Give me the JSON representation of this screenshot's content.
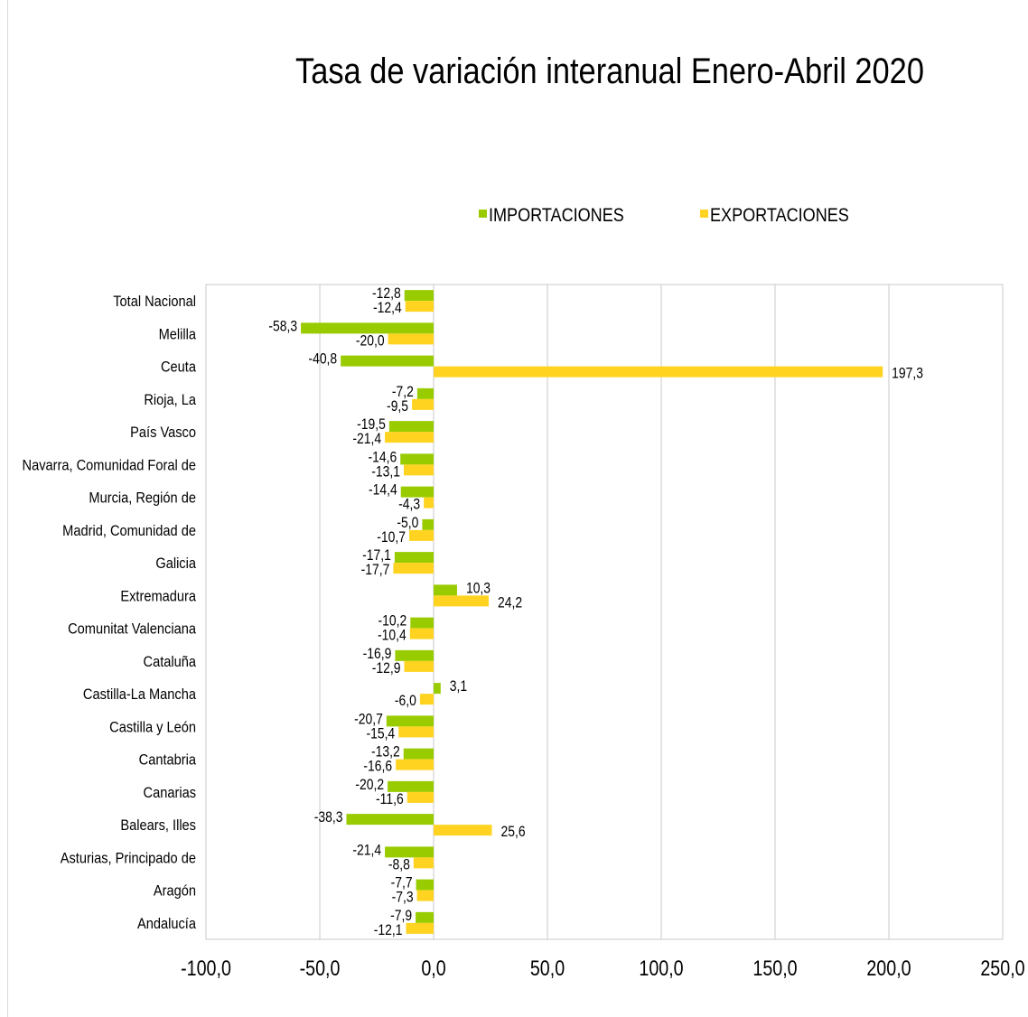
{
  "chart_data": {
    "type": "bar",
    "orientation": "horizontal",
    "title": "Tasa de variación interanual Enero-Abril 2020",
    "xlabel": "",
    "ylabel": "",
    "xlim": [
      -100,
      250
    ],
    "x_ticks": [
      "-100,0",
      "-50,0",
      "0,0",
      "50,0",
      "100,0",
      "150,0",
      "200,0",
      "250,0"
    ],
    "grid": "vertical",
    "legend_position": "top",
    "categories": [
      "Total Nacional",
      "Melilla",
      "Ceuta",
      "Rioja, La",
      "País Vasco",
      "Navarra, Comunidad Foral de",
      "Murcia, Región de",
      "Madrid, Comunidad de",
      "Galicia",
      "Extremadura",
      "Comunitat Valenciana",
      "Cataluña",
      "Castilla-La Mancha",
      "Castilla y León",
      "Cantabria",
      "Canarias",
      "Balears, Illes",
      "Asturias, Principado de",
      "Aragón",
      "Andalucía"
    ],
    "series": [
      {
        "name": "IMPORTACIONES",
        "color": "#99cc00",
        "values": [
          -12.8,
          -58.3,
          -40.8,
          -7.2,
          -19.5,
          -14.6,
          -14.4,
          -5.0,
          -17.1,
          10.3,
          -10.2,
          -16.9,
          3.1,
          -20.7,
          -13.2,
          -20.2,
          -38.3,
          -21.4,
          -7.7,
          -7.9
        ],
        "labels": [
          "-12,8",
          "-58,3",
          "-40,8",
          "-7,2",
          "-19,5",
          "-14,6",
          "-14,4",
          "-5,0",
          "-17,1",
          "10,3",
          "-10,2",
          "-16,9",
          "3,1",
          "-20,7",
          "-13,2",
          "-20,2",
          "-38,3",
          "-21,4",
          "-7,7",
          "-7,9"
        ]
      },
      {
        "name": "EXPORTACIONES",
        "color": "#ffd320",
        "values": [
          -12.4,
          -20.0,
          197.3,
          -9.5,
          -21.4,
          -13.1,
          -4.3,
          -10.7,
          -17.7,
          24.2,
          -10.4,
          -12.9,
          -6.0,
          -15.4,
          -16.6,
          -11.6,
          25.6,
          -8.8,
          -7.3,
          -12.1
        ],
        "labels": [
          "-12,4",
          "-20,0",
          "197,3",
          "-9,5",
          "-21,4",
          "-13,1",
          "-4,3",
          "-10,7",
          "-17,7",
          "24,2",
          "-10,4",
          "-12,9",
          "-6,0",
          "-15,4",
          "-16,6",
          "-11,6",
          "25,6",
          "-8,8",
          "-7,3",
          "-12,1"
        ]
      }
    ]
  }
}
